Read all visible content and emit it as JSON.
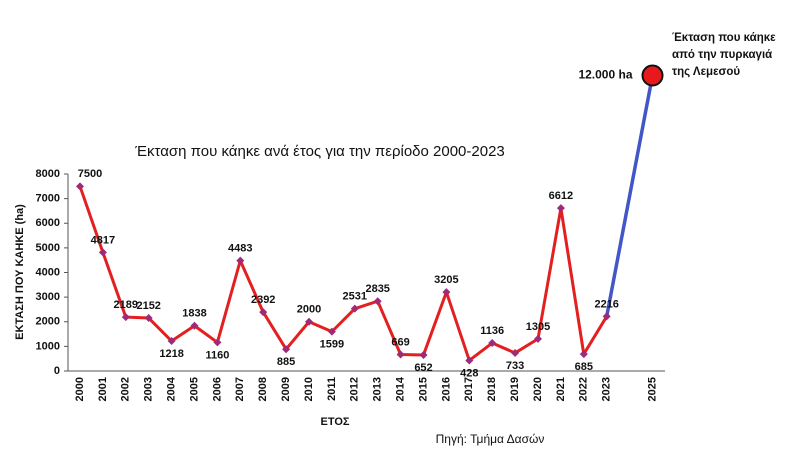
{
  "chart_data": {
    "type": "line",
    "title": "Έκταση που κάηκε ανά έτος για την περίοδο 2000-2023",
    "y_label": "ΕΚΤΑΣΗ ΠΟΥ ΚΑΗΚΕ (ha)",
    "x_label": "ΕΤΟΣ",
    "source": "Πηγή: Τμήμα Δασών",
    "categories": [
      "2000",
      "2001",
      "2002",
      "2003",
      "2004",
      "2005",
      "2006",
      "2007",
      "2008",
      "2009",
      "2010",
      "2011",
      "2012",
      "2013",
      "2014",
      "2015",
      "2016",
      "2017",
      "2018",
      "2019",
      "2020",
      "2021",
      "2022",
      "2023",
      null,
      "2025"
    ],
    "values": [
      7500,
      4817,
      2189,
      2152,
      1218,
      1838,
      1160,
      4483,
      2392,
      885,
      2000,
      1599,
      2531,
      2835,
      669,
      652,
      3205,
      428,
      1136,
      733,
      1305,
      6612,
      685,
      2216,
      null,
      null
    ],
    "color": "#e3201f",
    "marker_color": "#a02a7a",
    "ylim": [
      0,
      8000
    ],
    "yticks": [
      0,
      1000,
      2000,
      3000,
      4000,
      5000,
      6000,
      7000,
      8000
    ],
    "highlight": {
      "category_index": 25,
      "value": 12000,
      "value_label": "12.000 ha",
      "text": [
        "Έκταση που κάηκε",
        "από την πυρκαγιά",
        "της Λεμεσού"
      ],
      "color": "#e8191c",
      "line_color": "#4356c8"
    }
  }
}
